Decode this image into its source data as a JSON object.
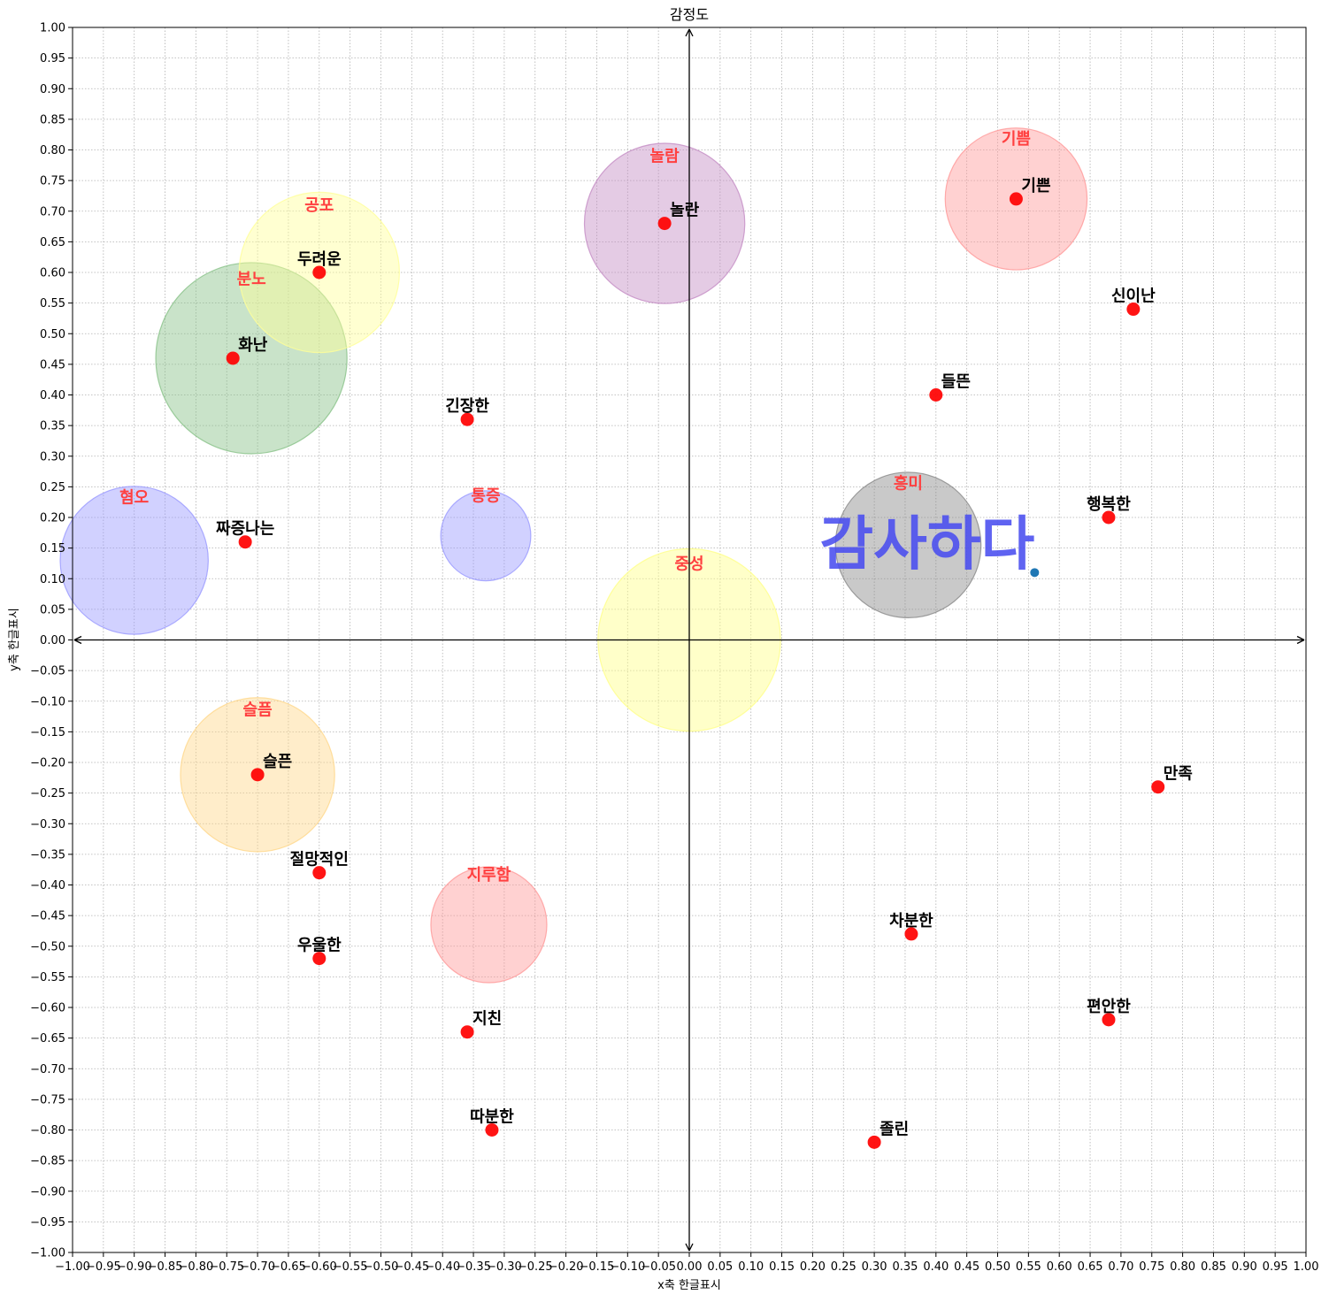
{
  "chart_data": {
    "type": "scatter",
    "title": "감정도",
    "xlabel": "x축 한글표시",
    "ylabel": "y축 한글표시",
    "xlim": [
      -1.0,
      1.0
    ],
    "ylim": [
      -1.0,
      1.0
    ],
    "tick_step": 0.05,
    "grid": true,
    "axis_arrows": true,
    "point_color": "#ff0000",
    "clusters": [
      {
        "label": "혐오",
        "x": -0.9,
        "y": 0.13,
        "r": 0.12,
        "color": "#9999ff"
      },
      {
        "label": "분노",
        "x": -0.71,
        "y": 0.46,
        "r": 0.155,
        "color": "#88c288"
      },
      {
        "label": "공포",
        "x": -0.6,
        "y": 0.6,
        "r": 0.13,
        "color": "#ffff99"
      },
      {
        "label": "놀람",
        "x": -0.04,
        "y": 0.68,
        "r": 0.13,
        "color": "#c48cc4"
      },
      {
        "label": "기쁨",
        "x": 0.53,
        "y": 0.72,
        "r": 0.115,
        "color": "#ff9999"
      },
      {
        "label": "통증",
        "x": -0.33,
        "y": 0.17,
        "r": 0.073,
        "color": "#9999ff"
      },
      {
        "label": "흥미",
        "x": 0.355,
        "y": 0.155,
        "r": 0.118,
        "color": "#888888"
      },
      {
        "label": "중성",
        "x": 0.0,
        "y": 0.0,
        "r": 0.148,
        "color": "#ffff88"
      },
      {
        "label": "슬픔",
        "x": -0.7,
        "y": -0.22,
        "r": 0.125,
        "color": "#ffd78a"
      },
      {
        "label": "지루함",
        "x": -0.325,
        "y": -0.465,
        "r": 0.094,
        "color": "#ff9999"
      }
    ],
    "points": [
      {
        "label": "두려운",
        "x": -0.6,
        "y": 0.6
      },
      {
        "label": "화난",
        "x": -0.74,
        "y": 0.46
      },
      {
        "label": "긴장한",
        "x": -0.36,
        "y": 0.36
      },
      {
        "label": "짜증나는",
        "x": -0.72,
        "y": 0.16
      },
      {
        "label": "놀란",
        "x": -0.04,
        "y": 0.68
      },
      {
        "label": "기쁜",
        "x": 0.53,
        "y": 0.72
      },
      {
        "label": "신이난",
        "x": 0.72,
        "y": 0.54
      },
      {
        "label": "들뜬",
        "x": 0.4,
        "y": 0.4
      },
      {
        "label": "행복한",
        "x": 0.68,
        "y": 0.2
      },
      {
        "label": "슬픈",
        "x": -0.7,
        "y": -0.22
      },
      {
        "label": "절망적인",
        "x": -0.6,
        "y": -0.38
      },
      {
        "label": "우울한",
        "x": -0.6,
        "y": -0.52
      },
      {
        "label": "지친",
        "x": -0.36,
        "y": -0.64
      },
      {
        "label": "따분한",
        "x": -0.32,
        "y": -0.8
      },
      {
        "label": "차분한",
        "x": 0.36,
        "y": -0.48
      },
      {
        "label": "졸린",
        "x": 0.3,
        "y": -0.82
      },
      {
        "label": "편안한",
        "x": 0.68,
        "y": -0.62
      },
      {
        "label": "만족",
        "x": 0.76,
        "y": -0.24
      }
    ],
    "highlight": {
      "label": "감사하다",
      "x": 0.56,
      "y": 0.11,
      "color": "#1f77b4"
    }
  }
}
